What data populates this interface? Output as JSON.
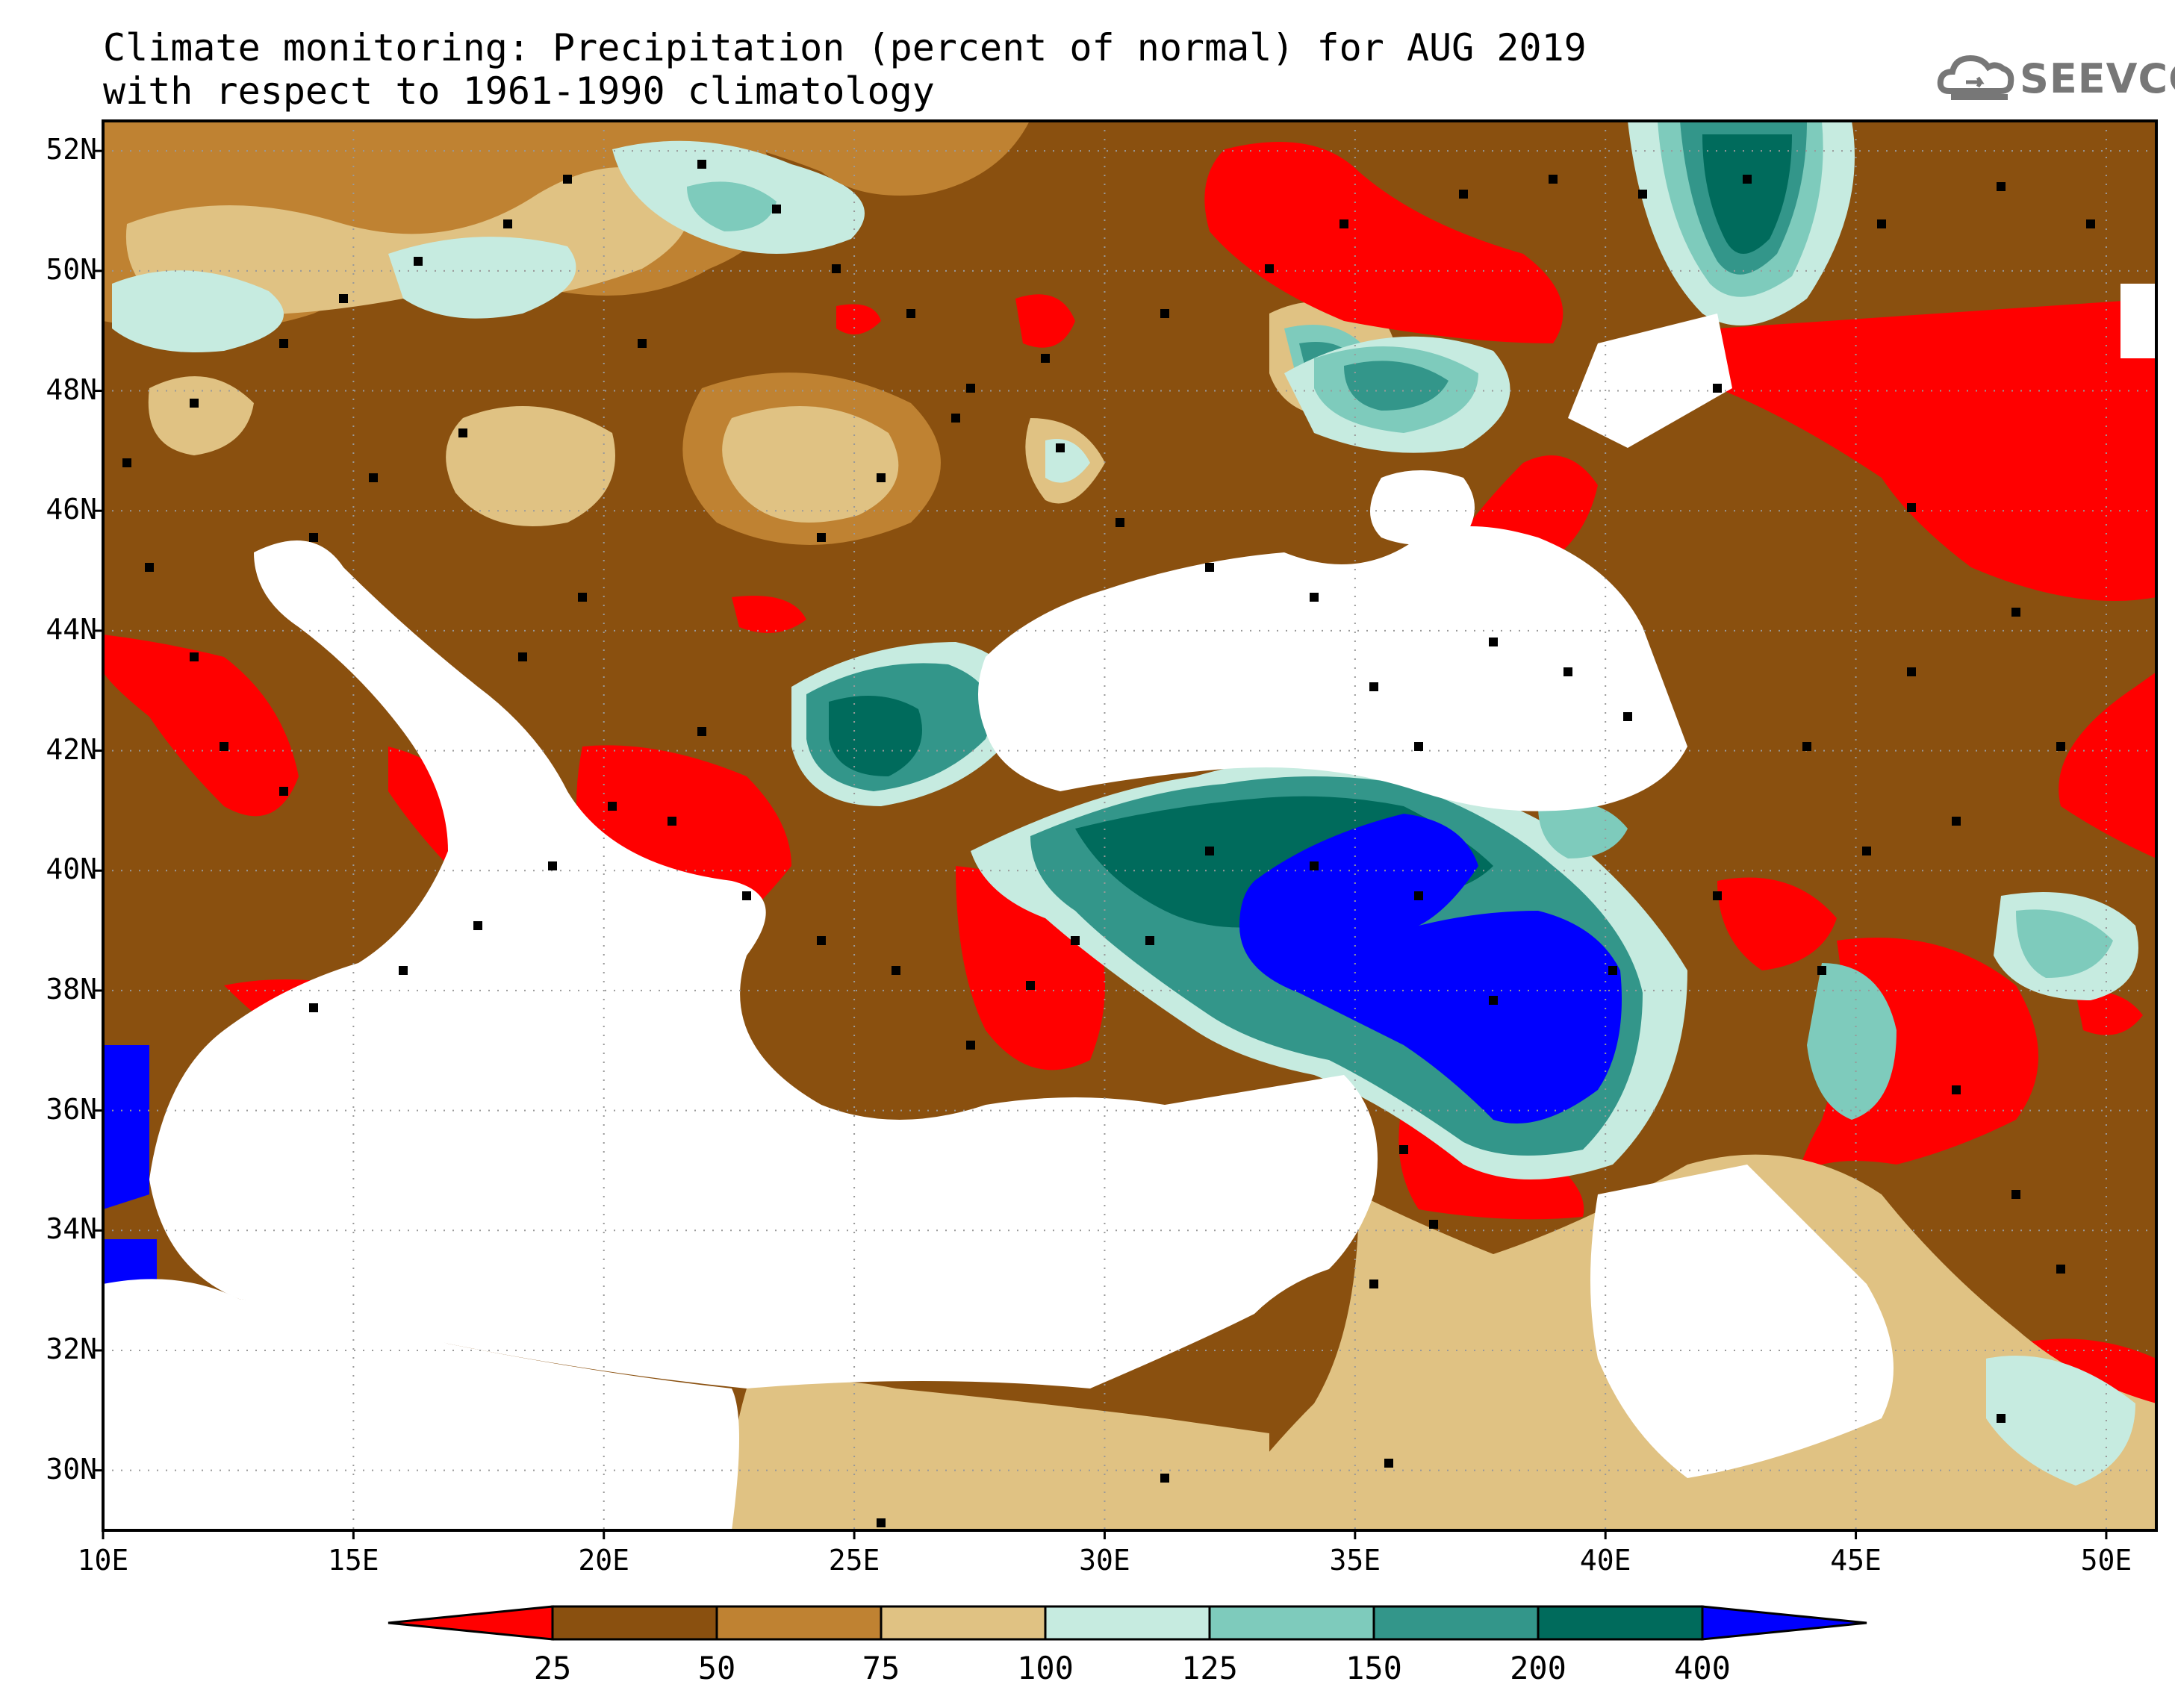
{
  "title_line1": "Climate monitoring: Precipitation (percent of normal) for AUG 2019",
  "title_line2": "with respect to 1961-1990 climatology",
  "logo_text": "SEEVCCC",
  "lat_labels": [
    "52N",
    "50N",
    "48N",
    "46N",
    "44N",
    "42N",
    "40N",
    "38N",
    "36N",
    "34N",
    "32N",
    "30N"
  ],
  "lon_labels": [
    "10E",
    "15E",
    "20E",
    "25E",
    "30E",
    "35E",
    "40E",
    "45E",
    "50E"
  ],
  "colorbar": {
    "labels": [
      "25",
      "50",
      "75",
      "100",
      "125",
      "150",
      "200",
      "400"
    ],
    "colors": [
      "#ff0000",
      "#8a500f",
      "#bf8232",
      "#e0c283",
      "#c6ebe0",
      "#7ecbbc",
      "#33968a",
      "#006b5c",
      "#0000ff"
    ]
  },
  "map": {
    "extent": {
      "lon": [
        10,
        51
      ],
      "lat": [
        29,
        52.5
      ]
    },
    "grid": true,
    "land_color": "#ffffff",
    "variable": "Precipitation percent of normal"
  }
}
